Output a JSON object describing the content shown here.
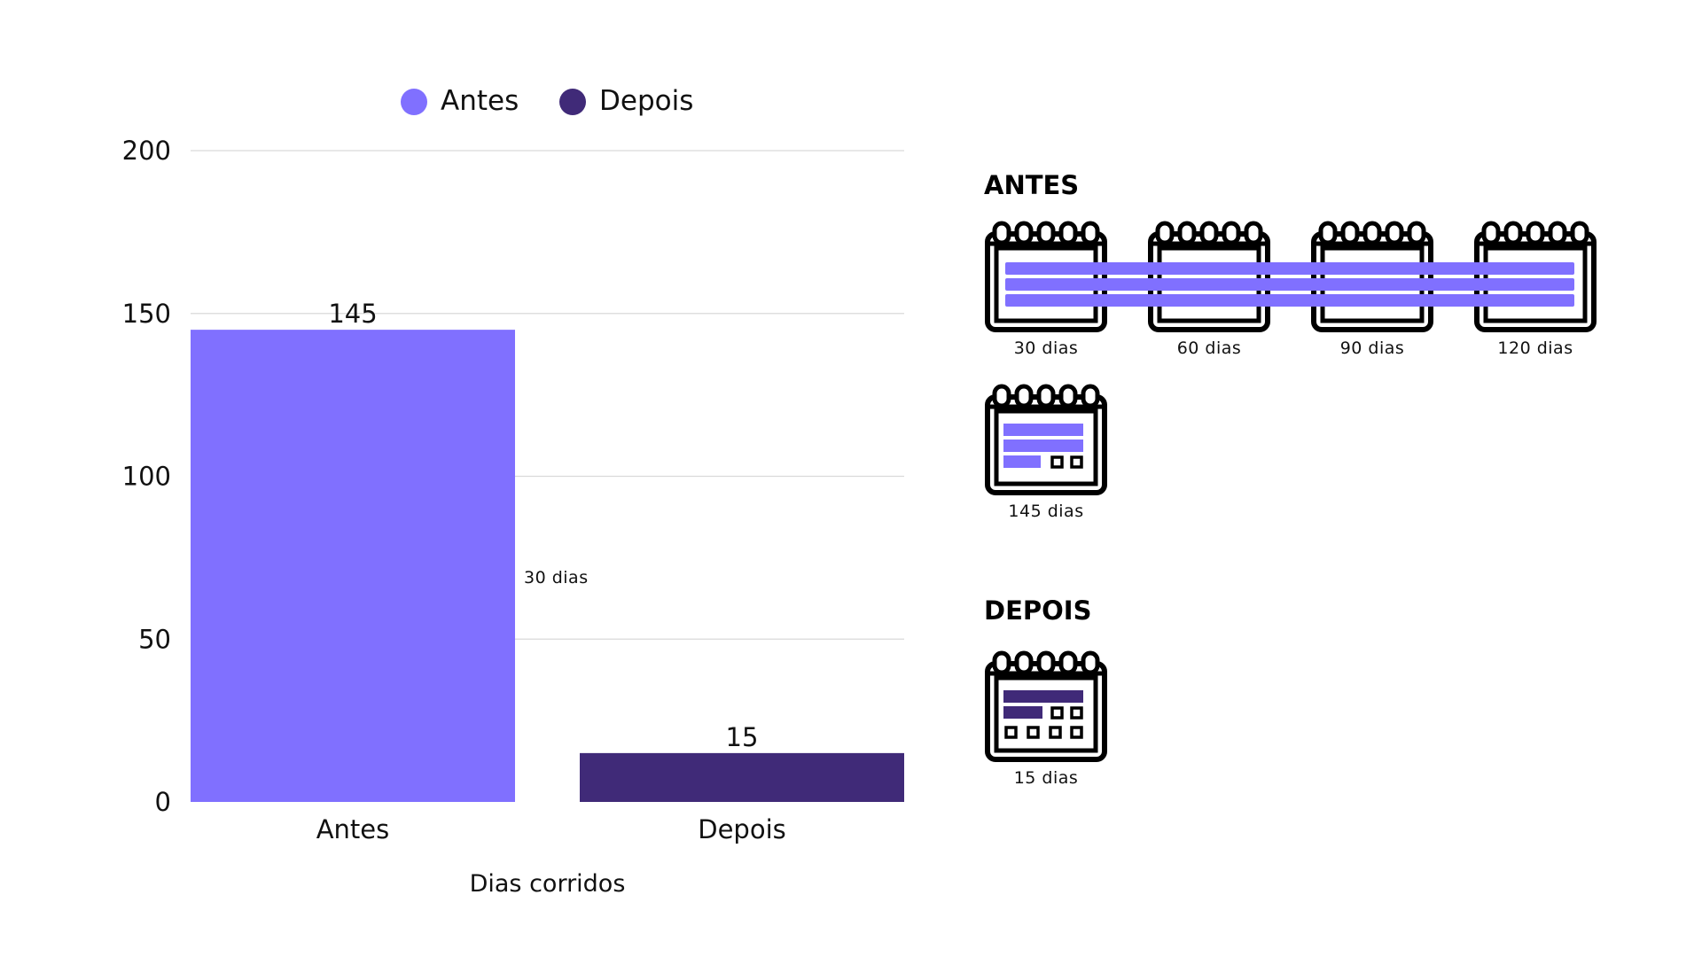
{
  "chart_data": {
    "type": "bar",
    "categories": [
      "Antes",
      "Depois"
    ],
    "values": [
      145,
      15
    ],
    "xlabel": "Dias corridos",
    "ylabel": "",
    "ylim": [
      0,
      200
    ],
    "yticks": [
      0,
      50,
      100,
      150,
      200
    ],
    "data_labels": [
      "145",
      "15"
    ],
    "legend": {
      "placement": "top",
      "items": [
        {
          "label": "Antes",
          "color": "#8070ff"
        },
        {
          "label": "Depois",
          "color": "#402a78"
        }
      ]
    },
    "grid": true,
    "annotation": "30 dias"
  },
  "colors": {
    "antes": "#8070ff",
    "depois": "#402a78",
    "grid": "#d9d9d9",
    "text": "#111111"
  },
  "infographic": {
    "antes": {
      "title": "ANTES",
      "calendars": [
        {
          "label": "30 dias",
          "icon": "calendar-icon"
        },
        {
          "label": "60 dias",
          "icon": "calendar-icon"
        },
        {
          "label": "90 dias",
          "icon": "calendar-icon"
        },
        {
          "label": "120 dias",
          "icon": "calendar-icon"
        },
        {
          "label": "145 dias",
          "icon": "calendar-icon"
        }
      ]
    },
    "depois": {
      "title": "DEPOIS",
      "calendars": [
        {
          "label": "15 dias",
          "icon": "calendar-icon"
        }
      ]
    }
  }
}
